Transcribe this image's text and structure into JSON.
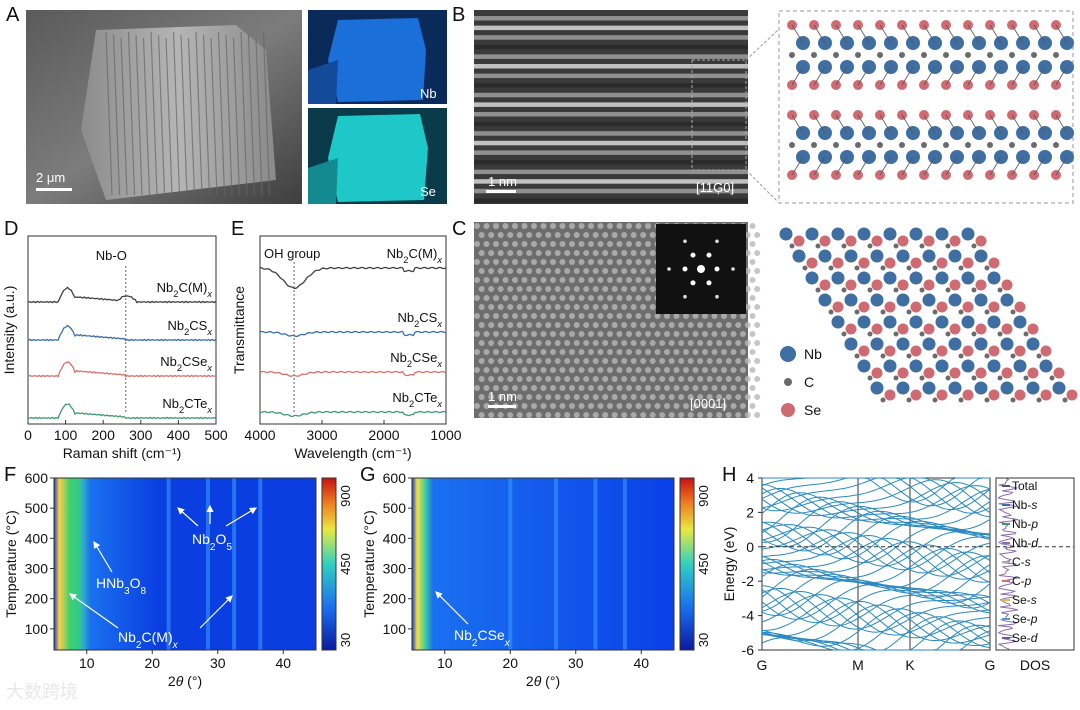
{
  "panels": {
    "A": {
      "label": "A",
      "scale_bar": "2 μm",
      "maps": [
        "Nb",
        "Se"
      ]
    },
    "B": {
      "label": "B",
      "scale_bar": "1 nm",
      "zone_axis": "[11Ģ0]"
    },
    "C": {
      "label": "C",
      "scale_bar": "1 nm",
      "zone_axis": "[0001]",
      "legend": [
        "Nb",
        "C",
        "Se"
      ]
    },
    "D": {
      "label": "D"
    },
    "E": {
      "label": "E"
    },
    "F": {
      "label": "F"
    },
    "G": {
      "label": "G"
    },
    "H": {
      "label": "H"
    }
  },
  "chart_data": [
    {
      "panel": "D",
      "type": "line",
      "xlabel": "Raman shift (cm⁻¹)",
      "ylabel": "Intensity (a.u.)",
      "xlim": [
        0,
        500
      ],
      "xticks": [
        "0",
        "100",
        "200",
        "300",
        "400",
        "500"
      ],
      "annotation": "Nb-O",
      "annotation_x": 260,
      "series": [
        {
          "name": "Nb2C(M)x",
          "sub": "2",
          "base": "Nb",
          "mid": "C(M)",
          "x_sub": "x",
          "color": "#404040"
        },
        {
          "name": "Nb2CSx",
          "sub": "2",
          "base": "Nb",
          "mid": "CS",
          "x_sub": "x",
          "color": "#3b6fa8"
        },
        {
          "name": "Nb2CSex",
          "sub": "2",
          "base": "Nb",
          "mid": "CSe",
          "x_sub": "x",
          "color": "#d9706a"
        },
        {
          "name": "Nb2CTex",
          "sub": "2",
          "base": "Nb",
          "mid": "CTe",
          "x_sub": "x",
          "color": "#3e9a72"
        }
      ]
    },
    {
      "panel": "E",
      "type": "line",
      "xlabel": "Wavelength (cm⁻¹)",
      "ylabel": "Transmittance",
      "xlim": [
        4000,
        1000
      ],
      "xticks": [
        "4000",
        "3000",
        "2000",
        "1000"
      ],
      "annotation": "OH group",
      "annotation_x": 3450,
      "series": [
        {
          "name": "Nb2C(M)x",
          "base": "Nb",
          "sub": "2",
          "mid": "C(M)",
          "x_sub": "x",
          "color": "#404040"
        },
        {
          "name": "Nb2CSx",
          "base": "Nb",
          "sub": "2",
          "mid": "CS",
          "x_sub": "x",
          "color": "#3b6fa8"
        },
        {
          "name": "Nb2CSex",
          "base": "Nb",
          "sub": "2",
          "mid": "CSe",
          "x_sub": "x",
          "color": "#d9706a"
        },
        {
          "name": "Nb2CTex",
          "base": "Nb",
          "sub": "2",
          "mid": "CTe",
          "x_sub": "x",
          "color": "#3e9a72"
        }
      ]
    },
    {
      "panel": "F",
      "type": "heatmap",
      "xlabel": "2θ (°)",
      "ylabel": "Temperature (°C)",
      "xticks": [
        "10",
        "20",
        "30",
        "40"
      ],
      "yticks": [
        "100",
        "200",
        "300",
        "400",
        "500",
        "600"
      ],
      "xlim": [
        5,
        45
      ],
      "ylim": [
        30,
        600
      ],
      "colorbar_ticks": [
        "900",
        "450",
        "30"
      ],
      "annotations": [
        {
          "text": "Nb2O5",
          "base": "Nb",
          "sub1": "2",
          "mid": "O",
          "sub2": "5"
        },
        {
          "text": "HNb3O8",
          "base": "HNb",
          "sub1": "3",
          "mid": "O",
          "sub2": "8"
        },
        {
          "text": "Nb2C(M)x",
          "base": "Nb",
          "sub1": "2",
          "mid": "C(M)",
          "sub2": "x"
        }
      ]
    },
    {
      "panel": "G",
      "type": "heatmap",
      "xlabel": "2θ (°)",
      "ylabel": "Temperature (°C)",
      "xticks": [
        "10",
        "20",
        "30",
        "40"
      ],
      "yticks": [
        "100",
        "200",
        "300",
        "400",
        "500",
        "600"
      ],
      "xlim": [
        5,
        45
      ],
      "ylim": [
        30,
        600
      ],
      "colorbar_ticks": [
        "900",
        "450",
        "30"
      ],
      "annotations": [
        {
          "text": "Nb2CSex",
          "base": "Nb",
          "sub1": "2",
          "mid": "CSe",
          "sub2": "x"
        }
      ]
    },
    {
      "panel": "H",
      "type": "line",
      "ylabel": "Energy (eV)",
      "ylim": [
        -6,
        4
      ],
      "yticks": [
        "4",
        "2",
        "0",
        "-2",
        "-4",
        "-6"
      ],
      "kpoints": [
        "G",
        "M",
        "K",
        "G"
      ],
      "dos_label": "DOS",
      "dos_legend": [
        {
          "text": "Total",
          "el": "",
          "orb": "",
          "color": "#555555"
        },
        {
          "text": "Nb-s",
          "el": "Nb-",
          "orb": "s",
          "color": "#3b6fa8"
        },
        {
          "text": "Nb-p",
          "el": "Nb-",
          "orb": "p",
          "color": "#3e9a72"
        },
        {
          "text": "Nb-d",
          "el": "Nb-",
          "orb": "d",
          "color": "#8a6fb0"
        },
        {
          "text": "C-s",
          "el": "C-",
          "orb": "s",
          "color": "#aaaaaa"
        },
        {
          "text": "C-p",
          "el": "C-",
          "orb": "p",
          "color": "#d9706a"
        },
        {
          "text": "Se-s",
          "el": "Se-",
          "orb": "s",
          "color": "#e0c040"
        },
        {
          "text": "Se-p",
          "el": "Se-",
          "orb": "p",
          "color": "#4aa0c8"
        },
        {
          "text": "Se-d",
          "el": "Se-",
          "orb": "d",
          "color": "#6a5a9a"
        }
      ]
    }
  ],
  "watermark": "大数跨境"
}
